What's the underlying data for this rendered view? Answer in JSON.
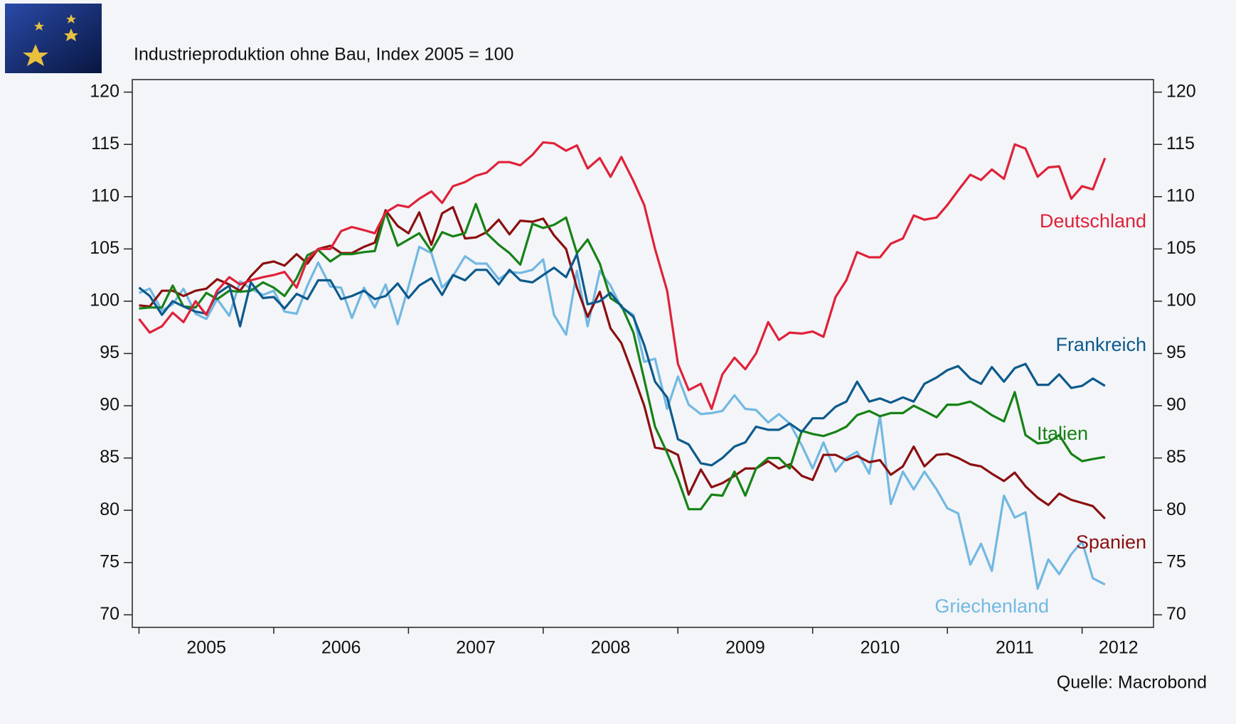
{
  "chart_data": {
    "type": "line",
    "title": "Industrieproduktion ohne Bau, Index 2005 = 100",
    "source": "Quelle: Macrobond",
    "x": [
      2005,
      2005.08,
      2005.17,
      2005.25,
      2005.33,
      2005.42,
      2005.5,
      2005.58,
      2005.67,
      2005.75,
      2005.83,
      2005.92,
      2006,
      2006.08,
      2006.17,
      2006.25,
      2006.33,
      2006.42,
      2006.5,
      2006.58,
      2006.67,
      2006.75,
      2006.83,
      2006.92,
      2007,
      2007.08,
      2007.17,
      2007.25,
      2007.33,
      2007.42,
      2007.5,
      2007.58,
      2007.67,
      2007.75,
      2007.83,
      2007.92,
      2008,
      2008.08,
      2008.17,
      2008.25,
      2008.33,
      2008.42,
      2008.5,
      2008.58,
      2008.67,
      2008.75,
      2008.83,
      2008.92,
      2009,
      2009.08,
      2009.17,
      2009.25,
      2009.33,
      2009.42,
      2009.5,
      2009.58,
      2009.67,
      2009.75,
      2009.83,
      2009.92,
      2010,
      2010.08,
      2010.17,
      2010.25,
      2010.33,
      2010.42,
      2010.5,
      2010.58,
      2010.67,
      2010.75,
      2010.83,
      2010.92,
      2011,
      2011.08,
      2011.17,
      2011.25,
      2011.33,
      2011.42,
      2011.5,
      2011.58,
      2011.67,
      2011.75,
      2011.83,
      2011.92,
      2012,
      2012.08,
      2012.17
    ],
    "series": [
      {
        "name": "Deutschland",
        "color": "#e0213a",
        "values": [
          98.3,
          97.0,
          97.6,
          98.9,
          98.0,
          100.0,
          98.7,
          101.0,
          102.3,
          101.6,
          102.0,
          102.3,
          102.5,
          102.8,
          101.3,
          104.0,
          105.0,
          105.0,
          106.7,
          107.1,
          106.8,
          106.5,
          108.5,
          109.2,
          109.0,
          109.8,
          110.5,
          109.4,
          111.0,
          111.4,
          112.0,
          112.3,
          113.3,
          113.3,
          113.0,
          114.0,
          115.2,
          115.1,
          114.4,
          114.9,
          112.7,
          113.7,
          111.9,
          113.8,
          111.5,
          109.2,
          105.0,
          101.0,
          94.0,
          91.5,
          92.1,
          89.7,
          93.0,
          94.6,
          93.5,
          95.0,
          98.0,
          96.3,
          97.0,
          96.9,
          97.1,
          96.6,
          100.4,
          102.0,
          104.7,
          104.2,
          104.2,
          105.5,
          106.0,
          108.2,
          107.8,
          108.0,
          109.2,
          110.6,
          112.1,
          111.6,
          112.6,
          111.7,
          115.0,
          114.6,
          111.9,
          112.8,
          112.9,
          109.8,
          111.0,
          110.7,
          113.7
        ]
      },
      {
        "name": "Frankreich",
        "color": "#0d5a8c",
        "values": [
          101.3,
          100.5,
          98.7,
          100.0,
          99.5,
          99.0,
          98.8,
          100.7,
          101.5,
          97.6,
          101.8,
          100.3,
          100.4,
          99.3,
          100.7,
          100.2,
          102.0,
          102.0,
          100.2,
          100.5,
          101.0,
          100.2,
          100.5,
          101.7,
          100.3,
          101.5,
          102.2,
          100.6,
          102.5,
          102.0,
          103.0,
          103.0,
          101.6,
          103.0,
          102.0,
          101.8,
          102.5,
          103.2,
          102.3,
          104.5,
          99.7,
          100.0,
          100.8,
          99.5,
          98.5,
          95.8,
          92.3,
          90.8,
          86.8,
          86.3,
          84.5,
          84.3,
          85.0,
          86.1,
          86.5,
          88.0,
          87.7,
          87.7,
          88.3,
          87.5,
          88.8,
          88.8,
          89.9,
          90.4,
          92.3,
          90.4,
          90.7,
          90.3,
          90.8,
          90.4,
          92.1,
          92.7,
          93.4,
          93.8,
          92.6,
          92.1,
          93.7,
          92.3,
          93.6,
          94.0,
          92.0,
          92.0,
          93.0,
          91.7,
          91.9,
          92.6,
          91.9
        ]
      },
      {
        "name": "Italien",
        "color": "#168216",
        "values": [
          99.3,
          99.4,
          99.4,
          101.5,
          99.5,
          99.4,
          100.8,
          100.2,
          101.0,
          100.9,
          101.0,
          101.8,
          101.3,
          100.5,
          102.2,
          104.4,
          104.9,
          103.8,
          104.5,
          104.5,
          104.7,
          104.8,
          108.5,
          105.3,
          105.9,
          106.5,
          104.8,
          106.6,
          106.2,
          106.5,
          109.3,
          106.5,
          105.4,
          104.6,
          103.5,
          107.4,
          107.0,
          107.3,
          108.0,
          104.6,
          105.9,
          103.6,
          100.3,
          99.6,
          97.0,
          92.5,
          88.0,
          85.5,
          83.0,
          80.1,
          80.1,
          81.5,
          81.4,
          83.7,
          81.4,
          84.0,
          85.0,
          85.0,
          84.0,
          87.6,
          87.3,
          87.1,
          87.5,
          88.0,
          89.1,
          89.5,
          89.0,
          89.3,
          89.3,
          90.0,
          89.5,
          88.9,
          90.1,
          90.1,
          90.4,
          89.8,
          89.1,
          88.5,
          91.3,
          87.2,
          86.4,
          86.5,
          87.2,
          85.4,
          84.7,
          84.9,
          85.1
        ]
      },
      {
        "name": "Spanien",
        "color": "#8b0f0f",
        "values": [
          99.6,
          99.5,
          101.0,
          101.0,
          100.5,
          101.0,
          101.2,
          102.1,
          101.6,
          101.0,
          102.4,
          103.6,
          103.8,
          103.4,
          104.5,
          103.6,
          105.0,
          105.3,
          104.6,
          104.6,
          105.2,
          105.6,
          108.7,
          107.2,
          106.5,
          108.5,
          105.4,
          108.4,
          109.0,
          106.0,
          106.1,
          106.6,
          107.8,
          106.4,
          107.7,
          107.6,
          107.9,
          106.3,
          105.0,
          101.3,
          98.5,
          100.9,
          97.4,
          96.0,
          92.9,
          90.0,
          86.0,
          85.8,
          85.3,
          81.5,
          83.9,
          82.2,
          82.6,
          83.3,
          84.0,
          84.0,
          84.7,
          84.0,
          84.4,
          83.3,
          82.9,
          85.3,
          85.3,
          84.8,
          85.2,
          84.6,
          84.8,
          83.4,
          84.2,
          86.1,
          84.2,
          85.3,
          85.4,
          85.0,
          84.4,
          84.2,
          83.5,
          82.8,
          83.6,
          82.3,
          81.2,
          80.5,
          81.6,
          81.0,
          80.7,
          80.4,
          79.2
        ]
      },
      {
        "name": "Griechenland",
        "color": "#72b8e2",
        "values": [
          100.8,
          101.2,
          99.1,
          99.7,
          101.2,
          98.8,
          98.3,
          100.2,
          98.6,
          101.9,
          101.2,
          100.6,
          101.0,
          99.0,
          98.8,
          101.5,
          103.7,
          101.4,
          101.3,
          98.4,
          101.3,
          99.4,
          101.6,
          97.8,
          101.4,
          105.2,
          104.6,
          101.3,
          102.4,
          104.3,
          103.6,
          103.6,
          102.1,
          102.8,
          102.7,
          103.0,
          104.0,
          98.7,
          96.8,
          102.9,
          97.6,
          102.9,
          101.5,
          99.4,
          98.7,
          94.2,
          94.5,
          89.7,
          92.8,
          90.1,
          89.2,
          89.3,
          89.5,
          91.0,
          89.7,
          89.6,
          88.4,
          89.2,
          88.3,
          86.2,
          84.0,
          86.5,
          83.7,
          85.0,
          85.6,
          83.5,
          89.0,
          80.6,
          83.7,
          82.0,
          83.7,
          82.0,
          80.2,
          79.7,
          74.8,
          76.8,
          74.2,
          81.4,
          79.3,
          79.8,
          72.5,
          75.3,
          73.9,
          75.8,
          77.0,
          73.5,
          72.9
        ]
      }
    ],
    "xlim": [
      2004.95,
      2012.53
    ],
    "xticks": [
      {
        "value": 2005.5,
        "label": "2005"
      },
      {
        "value": 2006.5,
        "label": "2006"
      },
      {
        "value": 2007.5,
        "label": "2007"
      },
      {
        "value": 2008.5,
        "label": "2008"
      },
      {
        "value": 2009.5,
        "label": "2009"
      },
      {
        "value": 2010.5,
        "label": "2010"
      },
      {
        "value": 2011.5,
        "label": "2011"
      },
      {
        "value": 2012.27,
        "label": "2012"
      }
    ],
    "xminorticks": [
      2005,
      2006,
      2007,
      2008,
      2009,
      2010,
      2011,
      2012
    ],
    "ylim": [
      68.8,
      121.2
    ],
    "yticks": [
      70,
      75,
      80,
      85,
      90,
      95,
      100,
      105,
      110,
      115,
      120
    ],
    "right_axis": true
  }
}
